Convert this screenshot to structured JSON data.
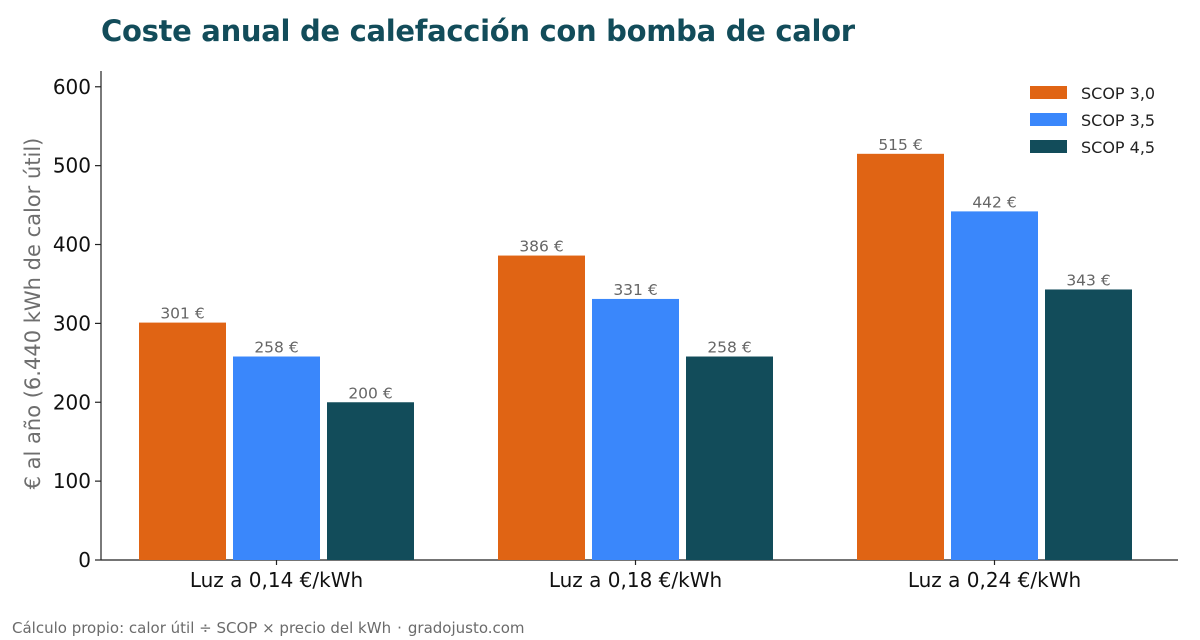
{
  "title": "Coste anual de calefacción con bomba de calor",
  "footer": {
    "source": "Cálculo propio: calor útil ÷ SCOP × precio del kWh",
    "separator": "·",
    "site": "gradojusto.com"
  },
  "chart_data": {
    "type": "bar",
    "categories": [
      "Luz a 0,14 €/kWh",
      "Luz a 0,18 €/kWh",
      "Luz a 0,24 €/kWh"
    ],
    "series": [
      {
        "name": "SCOP 3,0",
        "color": "#e06414",
        "values": [
          301,
          386,
          515
        ],
        "labels": [
          "301 €",
          "386 €",
          "515 €"
        ]
      },
      {
        "name": "SCOP 3,5",
        "color": "#3a87fb",
        "values": [
          258,
          331,
          442
        ],
        "labels": [
          "258 €",
          "331 €",
          "442 €"
        ]
      },
      {
        "name": "SCOP 4,5",
        "color": "#124c5a",
        "values": [
          200,
          258,
          343
        ],
        "labels": [
          "200 €",
          "258 €",
          "343 €"
        ]
      }
    ],
    "ylabel": "€ al año (6.440 kWh de calor útil)",
    "xlabel": "",
    "ylim": [
      0,
      620
    ],
    "yticks": [
      0,
      100,
      200,
      300,
      400,
      500,
      600
    ],
    "legend_position": "top-right",
    "grid": false
  }
}
